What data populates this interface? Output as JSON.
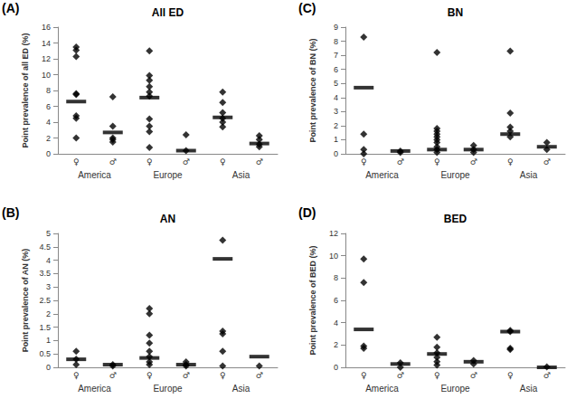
{
  "chart_data": [
    {
      "type": "scatter",
      "panel_label": "(A)",
      "title": "All ED",
      "y_label": "Point prevalence of all ED (%)",
      "categories": [
        "♀",
        "♂",
        "♀",
        "♂",
        "♀",
        "♂"
      ],
      "groups": [
        "America",
        "Europe",
        "Asia"
      ],
      "points": [
        [
          13.5,
          13.1,
          12.3,
          7.6,
          7.5,
          4.8,
          4.5,
          2.0
        ],
        [
          7.2,
          3.5,
          2.0,
          1.8,
          1.5
        ],
        [
          13.0,
          9.9,
          9.3,
          8.5,
          7.8,
          7.3,
          4.4,
          3.5,
          2.8,
          0.8
        ],
        [
          2.4,
          0.4
        ],
        [
          7.8,
          6.5,
          5.2,
          4.5,
          4.0,
          3.4
        ],
        [
          2.3,
          1.8,
          1.2,
          0.9
        ]
      ],
      "means": [
        6.6,
        2.7,
        7.1,
        0.4,
        4.6,
        1.3
      ],
      "ylim": [
        0,
        16
      ],
      "yticks": [
        0,
        2,
        4,
        6,
        8,
        10,
        12,
        14,
        16
      ],
      "color": "#000000",
      "marker": "diamond",
      "grid": false
    },
    {
      "type": "scatter",
      "panel_label": "(B)",
      "title": "AN",
      "y_label": "Point prevalence of AN (%)",
      "categories": [
        "♀",
        "♂",
        "♀",
        "♂",
        "♀",
        "♂"
      ],
      "groups": [
        "America",
        "Europe",
        "Asia"
      ],
      "points": [
        [
          0.6,
          0.3,
          0.1
        ],
        [
          0.1,
          0.05
        ],
        [
          2.2,
          2.0,
          1.2,
          0.9,
          0.6,
          0.4,
          0.2,
          0.1
        ],
        [
          0.2,
          0.1,
          0.05
        ],
        [
          4.75,
          1.35,
          1.25,
          0.6,
          0.05
        ],
        [
          0.05
        ]
      ],
      "means": [
        0.3,
        0.1,
        0.35,
        0.1,
        4.05,
        0.4
      ],
      "ylim": [
        0,
        5
      ],
      "yticks": [
        0,
        0.5,
        1,
        1.5,
        2,
        2.5,
        3,
        3.5,
        4,
        4.5,
        5
      ],
      "color": "#000000",
      "marker": "diamond",
      "grid": false
    },
    {
      "type": "scatter",
      "panel_label": "(C)",
      "title": "BN",
      "y_label": "Point prevalence of BN (%)",
      "categories": [
        "♀",
        "♂",
        "♀",
        "♂",
        "♀",
        "♂"
      ],
      "groups": [
        "America",
        "Europe",
        "Asia"
      ],
      "points": [
        [
          8.3,
          1.4,
          0.3,
          0.0
        ],
        [
          0.2,
          0.1
        ],
        [
          7.2,
          1.8,
          1.6,
          1.4,
          1.2,
          1.0,
          0.8,
          0.5,
          0.3,
          0.1
        ],
        [
          0.6,
          0.3,
          0.1
        ],
        [
          7.3,
          2.9,
          1.9,
          1.6,
          1.2
        ],
        [
          0.8,
          0.3
        ]
      ],
      "means": [
        4.7,
        0.2,
        0.3,
        0.3,
        1.4,
        0.5
      ],
      "ylim": [
        0,
        9
      ],
      "yticks": [
        0,
        1,
        2,
        3,
        4,
        5,
        6,
        7,
        8,
        9
      ],
      "color": "#000000",
      "marker": "diamond",
      "grid": false
    },
    {
      "type": "scatter",
      "panel_label": "(D)",
      "title": "BED",
      "y_label": "Point prevalence of BED (%)",
      "categories": [
        "♀",
        "♂",
        "♀",
        "♂",
        "♀",
        "♂"
      ],
      "groups": [
        "America",
        "Europe",
        "Asia"
      ],
      "points": [
        [
          9.7,
          7.6,
          1.9,
          1.7
        ],
        [
          0.4,
          0.0
        ],
        [
          2.7,
          1.8,
          1.3,
          0.9,
          0.5,
          0.2
        ],
        [
          0.6,
          0.3
        ],
        [
          3.3,
          3.2,
          1.7,
          1.6
        ],
        [
          0.05
        ]
      ],
      "means": [
        3.4,
        0.3,
        1.2,
        0.5,
        3.2,
        0.0
      ],
      "ylim": [
        0,
        12
      ],
      "yticks": [
        0,
        2,
        4,
        6,
        8,
        10,
        12
      ],
      "color": "#000000",
      "marker": "diamond",
      "grid": false
    }
  ]
}
